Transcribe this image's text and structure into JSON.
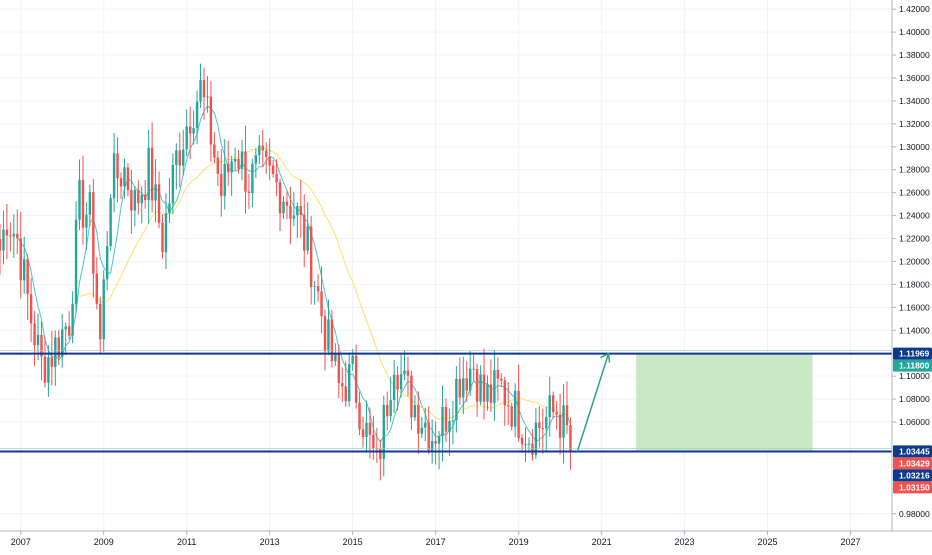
{
  "chart_data": {
    "type": "candlestick",
    "interval": "monthly",
    "ylim": [
      0.965,
      1.428
    ],
    "xlim": [
      "2006-07",
      "2028-01"
    ],
    "y_ticks": [
      "0.98000",
      "1.06000",
      "1.08000",
      "1.10000",
      "1.14000",
      "1.16000",
      "1.18000",
      "1.20000",
      "1.22000",
      "1.24000",
      "1.26000",
      "1.28000",
      "1.30000",
      "1.32000",
      "1.34000",
      "1.36000",
      "1.38000",
      "1.40000",
      "1.42000"
    ],
    "y_tick_values": [
      0.98,
      1.06,
      1.08,
      1.1,
      1.14,
      1.16,
      1.18,
      1.2,
      1.22,
      1.24,
      1.26,
      1.28,
      1.3,
      1.32,
      1.34,
      1.36,
      1.38,
      1.4,
      1.42
    ],
    "x_ticks": [
      "2007",
      "2009",
      "2011",
      "2013",
      "2015",
      "2017",
      "2019",
      "2021",
      "2023",
      "2025",
      "2027"
    ],
    "grid": true,
    "colors": {
      "up": "#26a69a",
      "down": "#ef5350",
      "ma_fast": "#4fc3c9",
      "ma_slow": "#ffe066",
      "line": "#0d3a8c",
      "arrow": "#2e9e8e",
      "target_zone": "#c8e9c4",
      "stop_line": "#ef5350"
    },
    "horizontal_lines": [
      {
        "y": 1.11969,
        "color": "#0d3a8c"
      },
      {
        "y": 1.03429,
        "color": "#0d3a8c"
      }
    ],
    "price_labels": [
      {
        "text": "1.11969",
        "value": 1.11969,
        "bg": "#0d3a8c",
        "fg": "#ffffff"
      },
      {
        "text": "1.11800",
        "value": 1.118,
        "bg": "#26a69a",
        "fg": "#ffffff"
      },
      {
        "text": "1.03445",
        "value": 1.03445,
        "bg": "#0d3a8c",
        "fg": "#ffffff"
      },
      {
        "text": "1.03429",
        "value": 1.03429,
        "bg": "#ef5350",
        "fg": "#ffffff"
      },
      {
        "text": "1.03216",
        "value": 1.03216,
        "bg": "#0d3a8c",
        "fg": "#ffffff"
      },
      {
        "text": "1.03150",
        "value": 1.0315,
        "bg": "#ef5350",
        "fg": "#ffffff"
      }
    ],
    "target_zone": {
      "x0": "2021-11",
      "x1": "2026-02",
      "y0": 1.03429,
      "y1": 1.11969
    },
    "arrow": {
      "from": [
        "2020-06",
        1.03429
      ],
      "to": [
        "2021-03",
        1.11969
      ]
    },
    "anchors": [
      [
        "2006-07",
        1.21
      ],
      [
        "2006-09",
        1.24
      ],
      [
        "2006-12",
        1.22
      ],
      [
        "2007-04",
        1.15
      ],
      [
        "2007-07",
        1.11
      ],
      [
        "2007-10",
        1.12
      ],
      [
        "2008-03",
        1.15
      ],
      [
        "2008-06",
        1.25
      ],
      [
        "2008-09",
        1.24
      ],
      [
        "2008-12",
        1.13
      ],
      [
        "2009-03",
        1.27
      ],
      [
        "2009-07",
        1.28
      ],
      [
        "2009-10",
        1.25
      ],
      [
        "2010-02",
        1.28
      ],
      [
        "2010-06",
        1.22
      ],
      [
        "2010-10",
        1.29
      ],
      [
        "2011-02",
        1.33
      ],
      [
        "2011-05",
        1.35
      ],
      [
        "2011-08",
        1.31
      ],
      [
        "2011-11",
        1.26
      ],
      [
        "2012-03",
        1.3
      ],
      [
        "2012-07",
        1.27
      ],
      [
        "2012-10",
        1.28
      ],
      [
        "2013-02",
        1.27
      ],
      [
        "2013-05",
        1.26
      ],
      [
        "2013-09",
        1.24
      ],
      [
        "2014-01",
        1.2
      ],
      [
        "2014-05",
        1.14
      ],
      [
        "2014-09",
        1.09
      ],
      [
        "2015-01",
        1.1
      ],
      [
        "2015-05",
        1.05
      ],
      [
        "2015-08",
        1.02
      ],
      [
        "2016-01",
        1.12
      ],
      [
        "2016-04",
        1.09
      ],
      [
        "2016-08",
        1.07
      ],
      [
        "2016-12",
        1.05
      ],
      [
        "2017-03",
        1.06
      ],
      [
        "2017-08",
        1.1
      ],
      [
        "2017-12",
        1.11
      ],
      [
        "2018-03",
        1.08
      ],
      [
        "2018-08",
        1.09
      ],
      [
        "2018-12",
        1.07
      ],
      [
        "2019-04",
        1.05
      ],
      [
        "2019-08",
        1.06
      ],
      [
        "2019-12",
        1.07
      ],
      [
        "2020-03",
        1.05
      ],
      [
        "2020-04",
        1.035
      ]
    ]
  }
}
